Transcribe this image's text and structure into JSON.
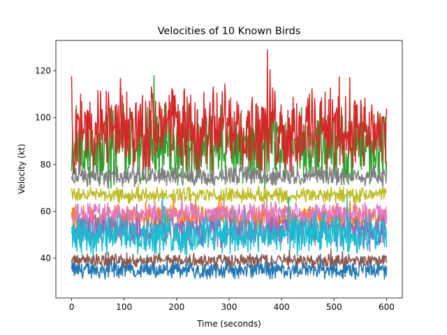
{
  "chart_data": {
    "type": "line",
    "title": "Velocities of 10 Known Birds",
    "xlabel": "Time (seconds)",
    "ylabel": "Velocity (kt)",
    "xlim": [
      -30,
      630
    ],
    "ylim": [
      23,
      133
    ],
    "x_ticks": [
      0,
      100,
      200,
      300,
      400,
      500,
      600
    ],
    "y_ticks": [
      40,
      60,
      80,
      100,
      120
    ],
    "grid": false,
    "legend": "none",
    "x_range": [
      0,
      600
    ],
    "samples": 600,
    "series": [
      {
        "color": "#1f77b4",
        "mean": 35,
        "spread": 3.0,
        "min": 28.5,
        "max": 42
      },
      {
        "color": "#ff7f0e",
        "mean": 57,
        "spread": 4.0,
        "min": 48,
        "max": 66
      },
      {
        "color": "#2ca02c",
        "mean": 88,
        "spread": 13,
        "min": 66,
        "max": 118
      },
      {
        "color": "#d62728",
        "mean": 95,
        "spread": 14,
        "min": 75,
        "max": 129
      },
      {
        "color": "#9467bd",
        "mean": 52,
        "spread": 5.5,
        "min": 40,
        "max": 63
      },
      {
        "color": "#8c564b",
        "mean": 39,
        "spread": 2.2,
        "min": 33,
        "max": 44
      },
      {
        "color": "#e377c2",
        "mean": 59,
        "spread": 3.5,
        "min": 50,
        "max": 68
      },
      {
        "color": "#7f7f7f",
        "mean": 75,
        "spread": 3.2,
        "min": 67,
        "max": 82
      },
      {
        "color": "#bcbd22",
        "mean": 67,
        "spread": 2.5,
        "min": 61,
        "max": 73
      },
      {
        "color": "#17becf",
        "mean": 50,
        "spread": 6.5,
        "min": 38,
        "max": 66
      }
    ]
  }
}
